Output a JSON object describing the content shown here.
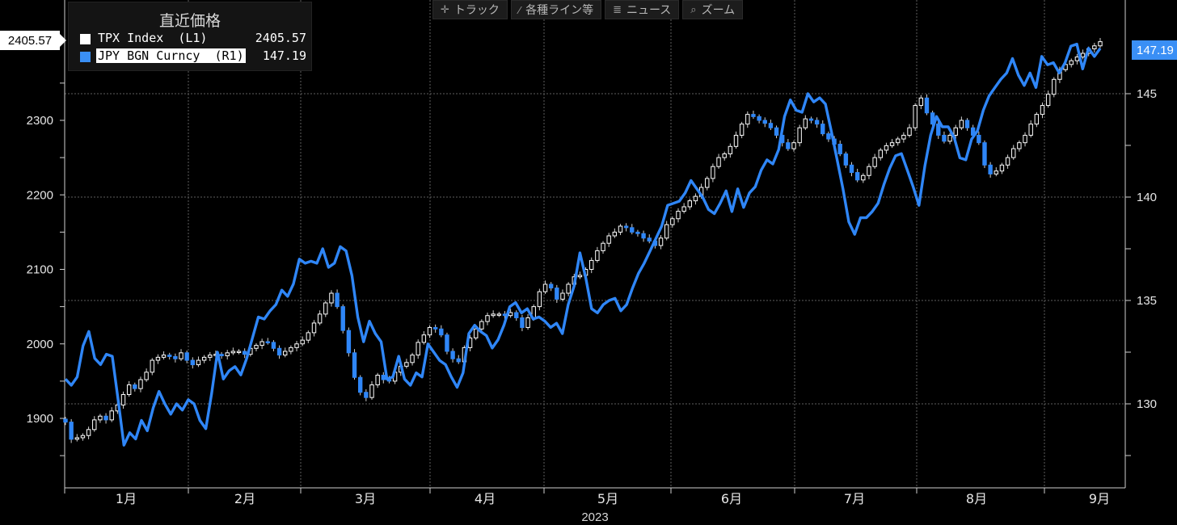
{
  "toolbar": {
    "track": "トラック",
    "lines": "各種ライン等",
    "news": "ニュース",
    "zoom": "ズーム"
  },
  "legend": {
    "title": "直近価格",
    "tpx_name": "TPX Index  (L1)",
    "tpx_value": "2405.57",
    "jpy_name": "JPY BGN Curncy  (R1)",
    "jpy_value": "147.19"
  },
  "last_labels": {
    "left": "2405.57",
    "right": "147.19"
  },
  "colors": {
    "tpx": "#ffffff",
    "jpy": "#2f86f7",
    "grid": "#6a6a6a",
    "background": "#000000"
  },
  "chart_data": {
    "type": "line",
    "year_label": "2023",
    "x_labels": [
      "1月",
      "2月",
      "3月",
      "4月",
      "5月",
      "6月",
      "7月",
      "8月",
      "9月"
    ],
    "left_axis": {
      "ticks": [
        1900,
        2000,
        2100,
        2200,
        2300
      ]
    },
    "right_axis": {
      "ticks": [
        130,
        135,
        140,
        145
      ]
    },
    "grid": true,
    "series": [
      {
        "name": "TPX Index (L1)",
        "style": "candlestick",
        "axis": "left",
        "close": [
          1895,
          1872,
          1874,
          1877,
          1885,
          1898,
          1903,
          1898,
          1910,
          1918,
          1932,
          1945,
          1940,
          1952,
          1962,
          1978,
          1982,
          1985,
          1983,
          1980,
          1988,
          1978,
          1972,
          1978,
          1982,
          1985,
          1986,
          1984,
          1988,
          1990,
          1990,
          1986,
          1994,
          1998,
          2003,
          2002,
          1994,
          1985,
          1990,
          1995,
          2000,
          2005,
          2015,
          2028,
          2040,
          2055,
          2068,
          2050,
          2018,
          1988,
          1955,
          1935,
          1928,
          1945,
          1958,
          1952,
          1950,
          1962,
          1970,
          1975,
          1985,
          2002,
          2012,
          2022,
          2020,
          2012,
          1990,
          1980,
          1976,
          1995,
          2008,
          2020,
          2030,
          2038,
          2040,
          2040,
          2038,
          2042,
          2035,
          2022,
          2035,
          2050,
          2070,
          2080,
          2075,
          2060,
          2068,
          2080,
          2090,
          2092,
          2100,
          2112,
          2125,
          2135,
          2145,
          2150,
          2158,
          2156,
          2150,
          2148,
          2142,
          2138,
          2132,
          2142,
          2160,
          2168,
          2178,
          2184,
          2192,
          2198,
          2210,
          2222,
          2238,
          2250,
          2255,
          2265,
          2280,
          2295,
          2308,
          2305,
          2300,
          2296,
          2290,
          2280,
          2270,
          2262,
          2270,
          2290,
          2302,
          2300,
          2295,
          2282,
          2275,
          2268,
          2255,
          2240,
          2230,
          2220,
          2226,
          2238,
          2250,
          2260,
          2266,
          2270,
          2275,
          2280,
          2290,
          2320,
          2330,
          2310,
          2295,
          2280,
          2272,
          2280,
          2290,
          2300,
          2290,
          2280,
          2270,
          2240,
          2228,
          2232,
          2240,
          2250,
          2262,
          2270,
          2280,
          2295,
          2308,
          2320,
          2335,
          2355,
          2368,
          2375,
          2380,
          2385,
          2390,
          2396,
          2400,
          2405.57
        ]
      },
      {
        "name": "JPY BGN Curncy (R1)",
        "style": "line",
        "axis": "right",
        "values": [
          131.2,
          130.9,
          131.3,
          132.8,
          133.5,
          132.2,
          131.9,
          132.4,
          132.3,
          130.2,
          128.0,
          128.6,
          128.3,
          129.2,
          128.7,
          129.8,
          130.6,
          130.0,
          129.5,
          130.0,
          129.7,
          130.2,
          130.0,
          129.2,
          128.8,
          130.5,
          132.5,
          131.2,
          131.6,
          131.8,
          131.4,
          132.2,
          133.2,
          134.2,
          134.1,
          134.5,
          134.8,
          135.5,
          135.2,
          135.8,
          137.0,
          136.8,
          136.9,
          136.8,
          137.5,
          136.6,
          136.8,
          137.6,
          137.4,
          136.2,
          134.2,
          133.0,
          134.0,
          133.4,
          133.0,
          131.2,
          131.3,
          132.3,
          131.2,
          130.9,
          131.5,
          131.3,
          132.9,
          132.5,
          132.1,
          131.9,
          131.3,
          130.8,
          131.5,
          133.4,
          133.8,
          133.5,
          133.3,
          132.7,
          133.1,
          133.8,
          134.7,
          134.9,
          134.4,
          134.6,
          134.1,
          134.2,
          134.0,
          133.7,
          133.9,
          133.4,
          134.8,
          135.7,
          137.3,
          136.1,
          134.6,
          134.4,
          134.8,
          135.0,
          135.1,
          134.5,
          134.8,
          135.6,
          136.3,
          136.8,
          137.4,
          138.0,
          138.6,
          139.6,
          139.7,
          139.8,
          140.2,
          140.8,
          140.4,
          140.0,
          139.4,
          139.2,
          139.7,
          140.3,
          139.3,
          140.4,
          139.5,
          140.2,
          140.5,
          141.3,
          141.8,
          141.6,
          142.3,
          143.9,
          144.7,
          144.2,
          144.1,
          145.0,
          144.6,
          144.8,
          144.5,
          143.2,
          141.8,
          140.4,
          138.8,
          138.2,
          139.0,
          139.0,
          139.3,
          139.7,
          140.6,
          141.4,
          142.0,
          142.1,
          141.3,
          140.5,
          139.6,
          141.5,
          143.0,
          143.9,
          143.4,
          143.4,
          142.9,
          141.9,
          141.8,
          142.8,
          143.2,
          144.2,
          144.9,
          145.3,
          145.7,
          146.0,
          146.7,
          145.9,
          145.4,
          146.0,
          145.3,
          146.8,
          146.4,
          146.5,
          146.0,
          146.5,
          147.3,
          147.4,
          146.2,
          147.2,
          146.8,
          147.19
        ]
      }
    ]
  }
}
